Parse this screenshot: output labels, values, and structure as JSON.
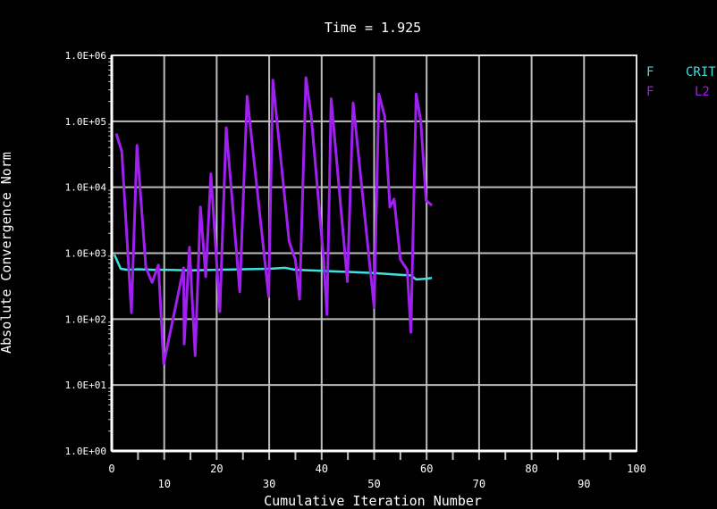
{
  "chart_data": {
    "type": "line",
    "title": "Time = 1.925",
    "xlabel": "Cumulative Iteration Number",
    "ylabel": "Absolute Convergence Norm",
    "xlim": [
      0,
      100
    ],
    "ylim": [
      1,
      1000000
    ],
    "yscale": "log",
    "grid": true,
    "legend_placement": "right",
    "x_ticks": [
      "0",
      "10",
      "20",
      "30",
      "40",
      "50",
      "60",
      "70",
      "80",
      "90",
      "100"
    ],
    "y_ticks": [
      "1.0E+00",
      "1.0E+01",
      "1.0E+02",
      "1.0E+03",
      "1.0E+04",
      "1.0E+05",
      "1.0E+06"
    ],
    "series": [
      {
        "name": "CRIT",
        "label_prefix": "F",
        "color": "#40e0e0",
        "x": [
          0.5,
          1.7,
          3,
          5,
          8,
          10,
          15,
          20,
          25,
          30,
          33,
          35,
          40,
          45,
          50,
          53,
          55,
          57,
          58,
          60,
          61
        ],
        "y": [
          950,
          580,
          560,
          570,
          560,
          560,
          550,
          560,
          570,
          580,
          600,
          560,
          540,
          520,
          500,
          480,
          470,
          460,
          400,
          410,
          420
        ]
      },
      {
        "name": "L2",
        "label_prefix": "F",
        "color": "#a020f0",
        "x": [
          0.85,
          1.9,
          3.75,
          4.8,
          6.5,
          7.7,
          8.9,
          9.9,
          13.7,
          13.8,
          14.8,
          15.9,
          16.9,
          17.9,
          18.9,
          20.6,
          21.8,
          24.4,
          25.8,
          29.9,
          30.7,
          33.8,
          35,
          35.8,
          37,
          38,
          40.4,
          41,
          41.8,
          44.9,
          46,
          50,
          50.9,
          52,
          53,
          53.8,
          55,
          56.3,
          57,
          58,
          58.9,
          59.9,
          61
        ],
        "y": [
          65000,
          35000,
          125,
          43000,
          600,
          360,
          660,
          21,
          600,
          42,
          1230,
          28,
          5000,
          440,
          16000,
          130,
          80000,
          260,
          240000,
          220,
          420000,
          1500,
          800,
          200,
          460000,
          120000,
          760,
          117,
          220000,
          370,
          190000,
          150,
          260000,
          120000,
          5000,
          6600,
          800,
          560,
          63,
          260000,
          100000,
          6300,
          5300
        ]
      }
    ]
  }
}
